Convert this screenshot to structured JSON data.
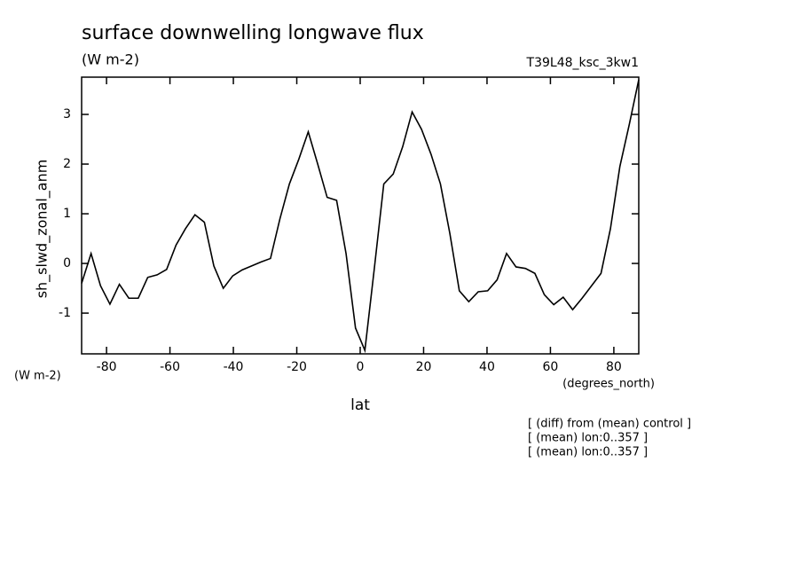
{
  "chart_data": {
    "type": "line",
    "title": "surface downwelling longwave flux",
    "subtitle": "(W m-2)",
    "run_label": "T39L48_ksc_3kw1",
    "y_label": "sh_slwd_zonal_anm",
    "y_unit": "(W m-2)",
    "x_label": "lat",
    "x_unit": "(degrees_north)",
    "notes": [
      "[ (diff) from (mean) control ]",
      "[ (mean) lon:0..357 ]",
      "[ (mean) lon:0..357 ]"
    ],
    "x": [
      -87.86,
      -84.88,
      -81.9,
      -78.93,
      -75.95,
      -72.97,
      -69.99,
      -67.01,
      -64.03,
      -61.05,
      -58.08,
      -55.1,
      -52.12,
      -49.14,
      -46.16,
      -43.18,
      -40.2,
      -37.23,
      -34.25,
      -31.27,
      -28.29,
      -25.31,
      -22.33,
      -19.35,
      -16.38,
      -13.4,
      -10.42,
      -7.44,
      -4.46,
      -1.48,
      1.48,
      4.46,
      7.44,
      10.42,
      13.4,
      16.38,
      19.35,
      22.33,
      25.31,
      28.29,
      31.27,
      34.25,
      37.23,
      40.2,
      43.18,
      46.16,
      49.14,
      52.12,
      55.1,
      58.08,
      61.05,
      64.03,
      67.01,
      69.99,
      72.97,
      75.95,
      78.93,
      81.9,
      84.88,
      87.86
    ],
    "series": [
      {
        "color": "#000000",
        "values": [
          -0.4,
          0.2,
          -0.45,
          -0.82,
          -0.42,
          -0.7,
          -0.7,
          -0.28,
          -0.23,
          -0.12,
          0.37,
          0.7,
          0.98,
          0.83,
          -0.05,
          -0.5,
          -0.25,
          -0.13,
          -0.05,
          0.03,
          0.1,
          0.9,
          1.6,
          2.1,
          2.65,
          2.0,
          1.33,
          1.27,
          0.2,
          -1.3,
          -1.75,
          -0.1,
          1.6,
          1.8,
          2.35,
          3.05,
          2.7,
          2.2,
          1.6,
          0.6,
          -0.55,
          -0.77,
          -0.57,
          -0.55,
          -0.33,
          0.2,
          -0.07,
          -0.1,
          -0.2,
          -0.63,
          -0.83,
          -0.68,
          -0.93,
          -0.7,
          -0.45,
          -0.2,
          0.7,
          1.95,
          2.8,
          3.7
        ]
      }
    ],
    "xlim": [
      -87.86,
      87.86
    ],
    "ylim": [
      -1.82,
      3.75
    ],
    "xticks": [
      -80,
      -60,
      -40,
      -20,
      0,
      20,
      40,
      60,
      80
    ],
    "yticks": [
      -1,
      0,
      1,
      2,
      3
    ]
  }
}
